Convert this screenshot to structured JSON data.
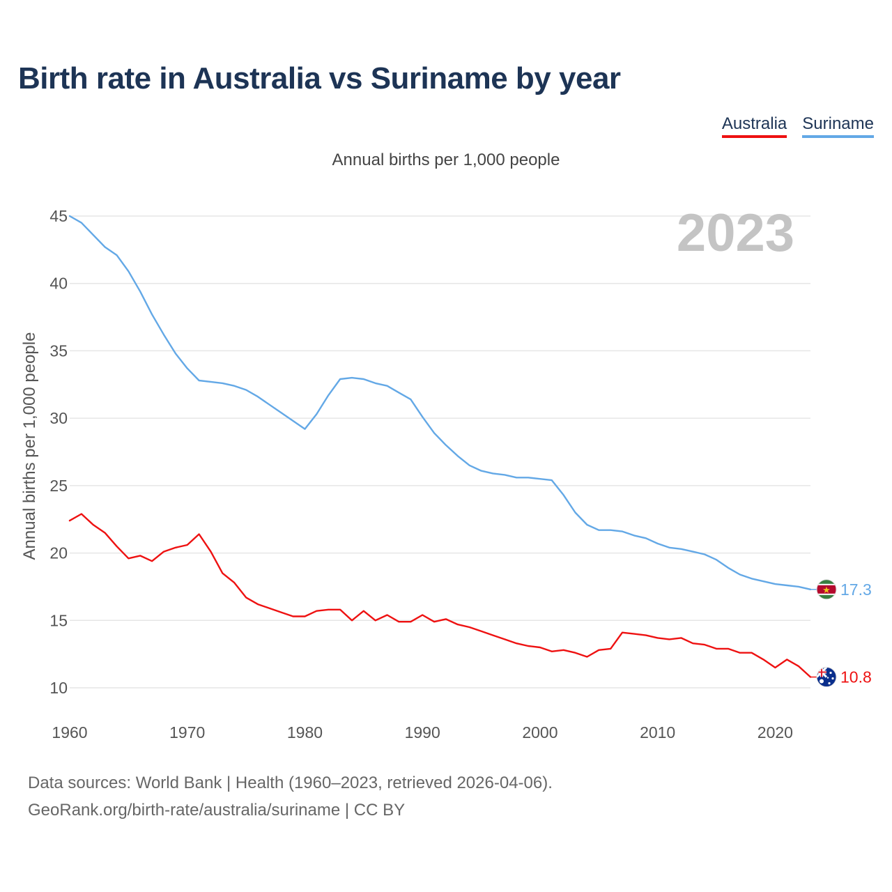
{
  "page": {
    "title": "Birth rate in Australia vs Suriname by year",
    "subtitle": "Annual births per 1,000 people",
    "year_watermark": "2023",
    "source_line1": "Data sources: World Bank | Health (1960–2023, retrieved 2026-04-06).",
    "source_line2": "GeoRank.org/birth-rate/australia/suriname | CC BY"
  },
  "legend": [
    {
      "label": "Australia",
      "color": "#ee1111"
    },
    {
      "label": "Suriname",
      "color": "#63a8e6"
    }
  ],
  "chart_data": {
    "type": "line",
    "title": "Birth rate in Australia vs Suriname by year",
    "ylabel": "Annual births per 1,000 people",
    "xlabel": "",
    "xlim": [
      1960,
      2023
    ],
    "ylim": [
      10,
      45
    ],
    "yticks": [
      10,
      15,
      20,
      25,
      30,
      35,
      40,
      45
    ],
    "xticks": [
      1960,
      1970,
      1980,
      1990,
      2000,
      2010,
      2020
    ],
    "grid": true,
    "x": [
      1960,
      1961,
      1962,
      1963,
      1964,
      1965,
      1966,
      1967,
      1968,
      1969,
      1970,
      1971,
      1972,
      1973,
      1974,
      1975,
      1976,
      1977,
      1978,
      1979,
      1980,
      1981,
      1982,
      1983,
      1984,
      1985,
      1986,
      1987,
      1988,
      1989,
      1990,
      1991,
      1992,
      1993,
      1994,
      1995,
      1996,
      1997,
      1998,
      1999,
      2000,
      2001,
      2002,
      2003,
      2004,
      2005,
      2006,
      2007,
      2008,
      2009,
      2010,
      2011,
      2012,
      2013,
      2014,
      2015,
      2016,
      2017,
      2018,
      2019,
      2020,
      2021,
      2022,
      2023
    ],
    "series": [
      {
        "name": "Australia",
        "color": "#ee1111",
        "end_label": "10.8",
        "flag": "australia-flag",
        "values": [
          22.4,
          22.9,
          22.1,
          21.5,
          20.5,
          19.6,
          19.8,
          19.4,
          20.1,
          20.4,
          20.6,
          21.4,
          20.1,
          18.5,
          17.8,
          16.7,
          16.2,
          15.9,
          15.6,
          15.3,
          15.3,
          15.7,
          15.8,
          15.8,
          15.0,
          15.7,
          15.0,
          15.4,
          14.9,
          14.9,
          15.4,
          14.9,
          15.1,
          14.7,
          14.5,
          14.2,
          13.9,
          13.6,
          13.3,
          13.1,
          13.0,
          12.7,
          12.8,
          12.6,
          12.3,
          12.8,
          12.9,
          14.1,
          14.0,
          13.9,
          13.7,
          13.6,
          13.7,
          13.3,
          13.2,
          12.9,
          12.9,
          12.6,
          12.6,
          12.1,
          11.5,
          12.1,
          11.6,
          10.8
        ]
      },
      {
        "name": "Suriname",
        "color": "#63a8e6",
        "end_label": "17.3",
        "flag": "suriname-flag",
        "values": [
          45.0,
          44.5,
          43.6,
          42.7,
          42.1,
          40.9,
          39.4,
          37.7,
          36.2,
          34.8,
          33.7,
          32.8,
          32.7,
          32.6,
          32.4,
          32.1,
          31.6,
          31.0,
          30.4,
          29.8,
          29.2,
          30.3,
          31.7,
          32.9,
          33.0,
          32.9,
          32.6,
          32.4,
          31.9,
          31.4,
          30.1,
          28.9,
          28.0,
          27.2,
          26.5,
          26.1,
          25.9,
          25.8,
          25.6,
          25.6,
          25.5,
          25.4,
          24.3,
          23.0,
          22.1,
          21.7,
          21.7,
          21.6,
          21.3,
          21.1,
          20.7,
          20.4,
          20.3,
          20.1,
          19.9,
          19.5,
          18.9,
          18.4,
          18.1,
          17.9,
          17.7,
          17.6,
          17.5,
          17.3
        ]
      }
    ]
  }
}
